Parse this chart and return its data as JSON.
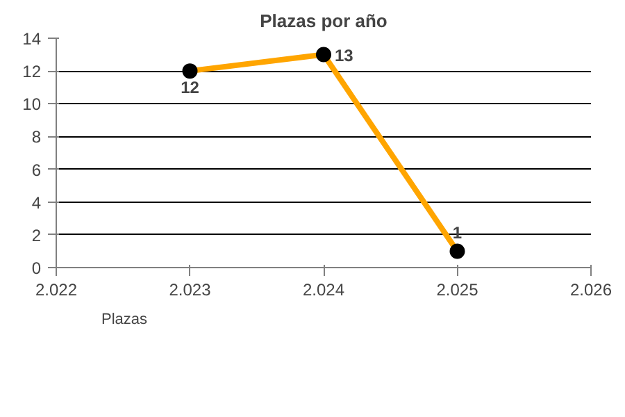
{
  "chart_data": {
    "type": "line",
    "title": "Plazas por año",
    "x": [
      2023,
      2024,
      2025
    ],
    "series": [
      {
        "name": "Plazas",
        "color": "#ffa500",
        "values": [
          12,
          13,
          1
        ]
      }
    ],
    "xlim": [
      2022,
      2026
    ],
    "xticks": [
      {
        "value": 2022,
        "label": "2.022"
      },
      {
        "value": 2023,
        "label": "2.023"
      },
      {
        "value": 2024,
        "label": "2.024"
      },
      {
        "value": 2025,
        "label": "2.025"
      },
      {
        "value": 2026,
        "label": "2.026"
      }
    ],
    "ylim": [
      0,
      14
    ],
    "yticks": [
      0,
      2,
      4,
      6,
      8,
      10,
      12,
      14
    ],
    "grid": "y",
    "legend": "bottom left",
    "marker": "circle",
    "line_style": "solid",
    "data_labels": true
  }
}
